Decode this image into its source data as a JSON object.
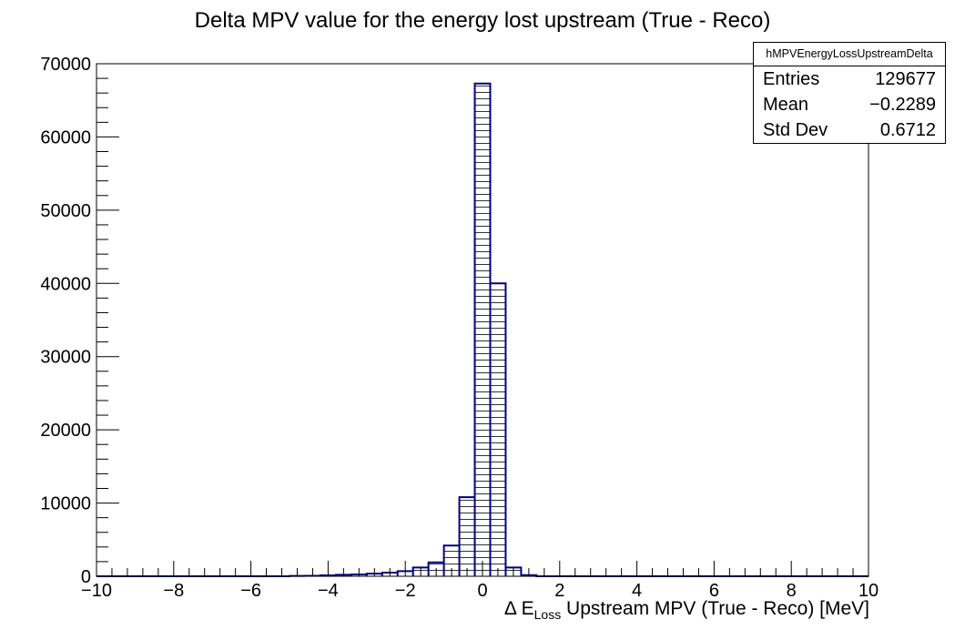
{
  "chart_data": {
    "type": "bar",
    "title": "Delta MPV value for the energy lost upstream (True - Reco)",
    "xlabel": {
      "prefix": "Δ E",
      "sub": "Loss",
      "suffix": " Upstream MPV (True - Reco) [MeV]"
    },
    "ylabel": "",
    "xlim": [
      -10,
      10
    ],
    "ylim": [
      0,
      70000
    ],
    "bin_width": 0.4,
    "xticks": [
      -10,
      -8,
      -6,
      -4,
      -2,
      0,
      2,
      4,
      6,
      8,
      10
    ],
    "xtick_labels": [
      "−10",
      "−8",
      "−6",
      "−4",
      "−2",
      "0",
      "2",
      "4",
      "6",
      "8",
      "10"
    ],
    "yticks": [
      0,
      10000,
      20000,
      30000,
      40000,
      50000,
      60000,
      70000
    ],
    "ytick_labels": [
      "0",
      "10000",
      "20000",
      "30000",
      "40000",
      "50000",
      "60000",
      "70000"
    ],
    "bins": [
      {
        "x": -4.8,
        "y": 40
      },
      {
        "x": -4.4,
        "y": 60
      },
      {
        "x": -4.0,
        "y": 120
      },
      {
        "x": -3.6,
        "y": 200
      },
      {
        "x": -3.2,
        "y": 250
      },
      {
        "x": -2.8,
        "y": 350
      },
      {
        "x": -2.4,
        "y": 500
      },
      {
        "x": -2.0,
        "y": 700
      },
      {
        "x": -1.6,
        "y": 1200
      },
      {
        "x": -1.2,
        "y": 1900
      },
      {
        "x": -0.8,
        "y": 4200
      },
      {
        "x": -0.4,
        "y": 10800
      },
      {
        "x": 0.0,
        "y": 67300
      },
      {
        "x": 0.4,
        "y": 40000
      },
      {
        "x": 0.8,
        "y": 1200
      },
      {
        "x": 1.2,
        "y": 150
      }
    ],
    "grid": false,
    "colors": {
      "bar_line": "#00007f",
      "hatch": "#000000",
      "axis": "#000000"
    },
    "stats": {
      "name": "hMPVEnergyLossUpstreamDelta",
      "rows": [
        {
          "label": "Entries",
          "value": "129677"
        },
        {
          "label": "Mean",
          "value": "−0.2289"
        },
        {
          "label": "Std Dev",
          "value": "0.6712"
        }
      ],
      "placement": "top-right"
    }
  }
}
